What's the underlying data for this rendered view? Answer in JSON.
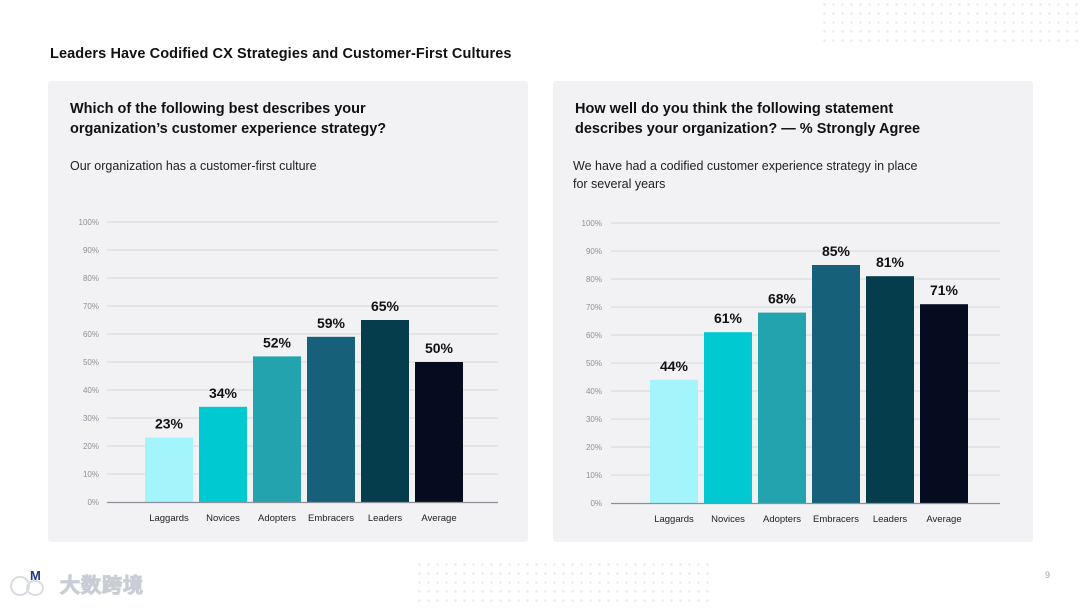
{
  "page": {
    "title": "Leaders Have Codified CX Strategies and Customer-First Cultures",
    "page_number": "9",
    "watermark_text": "大数跨境"
  },
  "colors": {
    "panel_bg": "#f2f2f5",
    "bars": [
      "#a3f5fb",
      "#00c9d2",
      "#22a3ad",
      "#16607a",
      "#053d4c",
      "#050c1f"
    ],
    "grid": "#c8cbd1",
    "axis": "#8a8f98",
    "tick_text": "#8c9097"
  },
  "chart_data": [
    {
      "type": "bar",
      "question": "Which of the following best describes your organization’s customer experience strategy?",
      "subtitle": "Our organization has a customer-first culture",
      "categories": [
        "Laggards",
        "Novices",
        "Adopters",
        "Embracers",
        "Leaders",
        "Average"
      ],
      "values": [
        23,
        34,
        52,
        59,
        65,
        50
      ],
      "value_labels": [
        "23%",
        "34%",
        "52%",
        "59%",
        "65%",
        "50%"
      ],
      "yticks": [
        "0%",
        "10%",
        "20%",
        "30%",
        "40%",
        "50%",
        "60%",
        "70%",
        "80%",
        "90%",
        "100%"
      ],
      "ylim": [
        0,
        100
      ],
      "grid": true
    },
    {
      "type": "bar",
      "question": "How well do you think the following statement describes your organization? — % Strongly Agree",
      "subtitle": "We have had a codified customer experience strategy in place for several years",
      "categories": [
        "Laggards",
        "Novices",
        "Adopters",
        "Embracers",
        "Leaders",
        "Average"
      ],
      "values": [
        44,
        61,
        68,
        85,
        81,
        71
      ],
      "value_labels": [
        "44%",
        "61%",
        "68%",
        "85%",
        "81%",
        "71%"
      ],
      "yticks": [
        "0%",
        "10%",
        "20%",
        "30%",
        "40%",
        "50%",
        "60%",
        "70%",
        "80%",
        "90%",
        "100%"
      ],
      "ylim": [
        0,
        100
      ],
      "grid": true
    }
  ]
}
